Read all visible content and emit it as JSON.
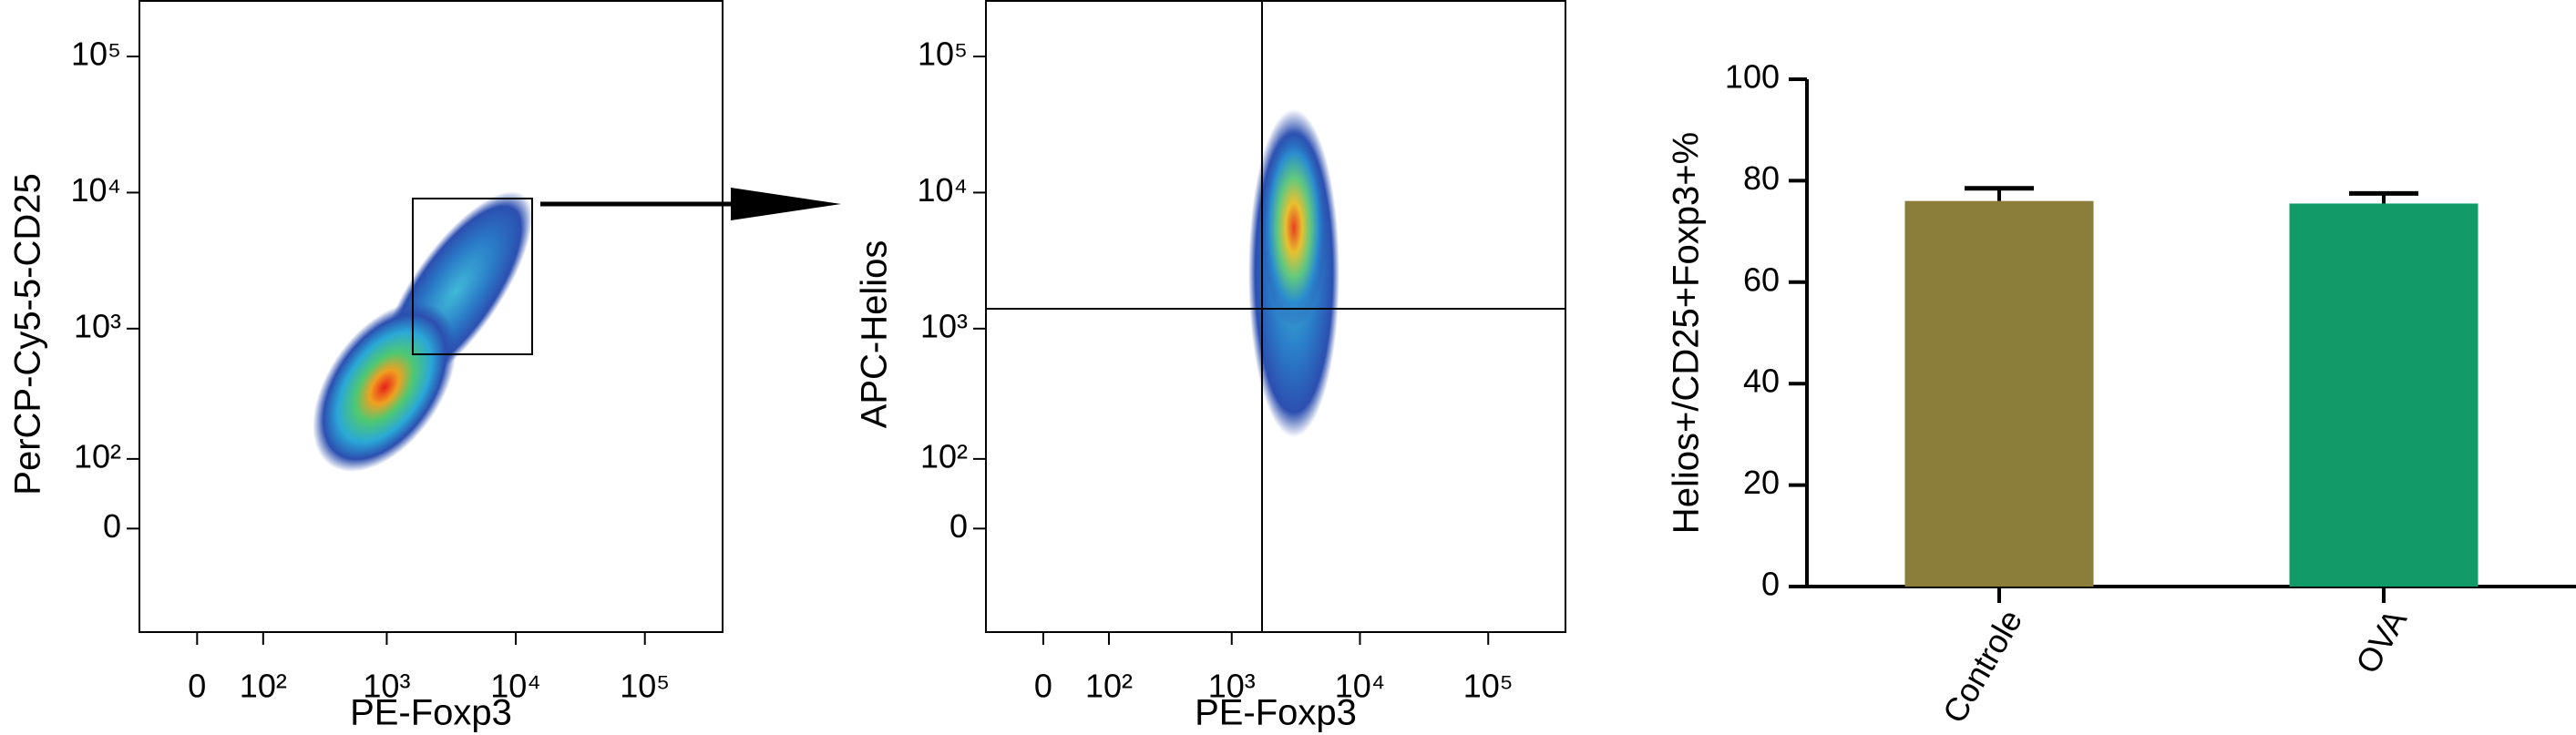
{
  "chart_data": [
    {
      "type": "density",
      "xlabel": "PE-Foxp3",
      "ylabel": "PerCP-Cy5-5-CD25",
      "scale": "biexponential",
      "xlim": [
        -83,
        400000
      ],
      "ylim": [
        -190,
        260000
      ],
      "xticks": [
        0,
        {
          "value": 100,
          "label": "10²"
        },
        {
          "value": 1000,
          "label": "10³"
        },
        {
          "value": 10000,
          "label": "10⁴"
        },
        {
          "value": 100000,
          "label": "10⁵"
        }
      ],
      "yticks": [
        0,
        {
          "value": 100,
          "label": "10²"
        },
        {
          "value": 1000,
          "label": "10³"
        },
        {
          "value": 10000,
          "label": "10⁴"
        },
        {
          "value": 100000,
          "label": "10⁵"
        }
      ]
    },
    {
      "type": "density",
      "xlabel": "PE-Foxp3",
      "ylabel": "APC-Helios",
      "scale": "biexponential",
      "xlim": [
        -83,
        400000
      ],
      "ylim": [
        -190,
        260000
      ],
      "xticks": [
        0,
        {
          "value": 100,
          "label": "10²"
        },
        {
          "value": 1000,
          "label": "10³"
        },
        {
          "value": 10000,
          "label": "10⁴"
        },
        {
          "value": 100000,
          "label": "10⁵"
        }
      ],
      "yticks": [
        0,
        {
          "value": 100,
          "label": "10²"
        },
        {
          "value": 1000,
          "label": "10³"
        },
        {
          "value": 10000,
          "label": "10⁴"
        },
        {
          "value": 100000,
          "label": "10⁵"
        }
      ]
    },
    {
      "type": "bar",
      "ylabel": "Helios+/CD25+Foxp3+%",
      "categories": [
        "Controle",
        "OVA"
      ],
      "values": [
        76,
        75.5
      ],
      "errors": [
        2.5,
        2
      ],
      "colors": [
        "#8b7d3a",
        "#129a68"
      ],
      "ylim": [
        0,
        100
      ],
      "yticks": [
        0,
        20,
        40,
        60,
        80,
        100
      ]
    }
  ]
}
